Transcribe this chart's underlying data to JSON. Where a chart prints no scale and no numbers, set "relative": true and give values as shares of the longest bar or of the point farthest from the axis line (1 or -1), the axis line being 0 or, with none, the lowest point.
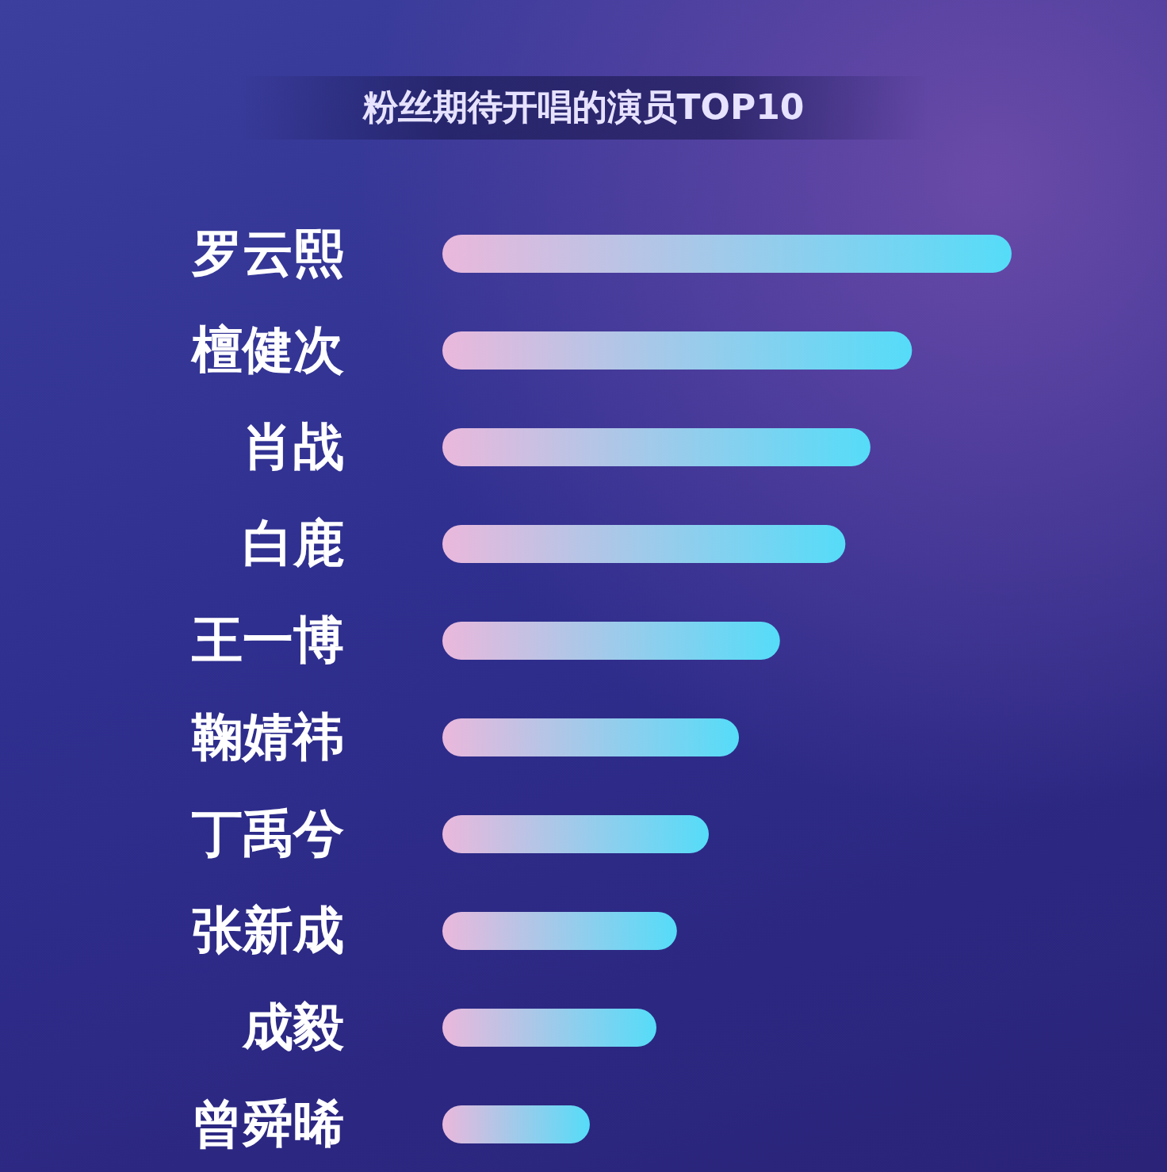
{
  "chart_data": {
    "type": "bar",
    "orientation": "horizontal",
    "relative": true,
    "title": "粉丝期待开唱的演员TOP10",
    "categories": [
      "罗云熙",
      "檀健次",
      "肖战",
      "白鹿",
      "王一博",
      "鞠婧祎",
      "丁禹兮",
      "张新成",
      "成毅",
      "曾舜晞"
    ],
    "values": [
      1,
      0.825,
      0.752,
      0.708,
      0.593,
      0.521,
      0.468,
      0.412,
      0.376,
      0.259
    ],
    "color": "#55dcf8"
  }
}
